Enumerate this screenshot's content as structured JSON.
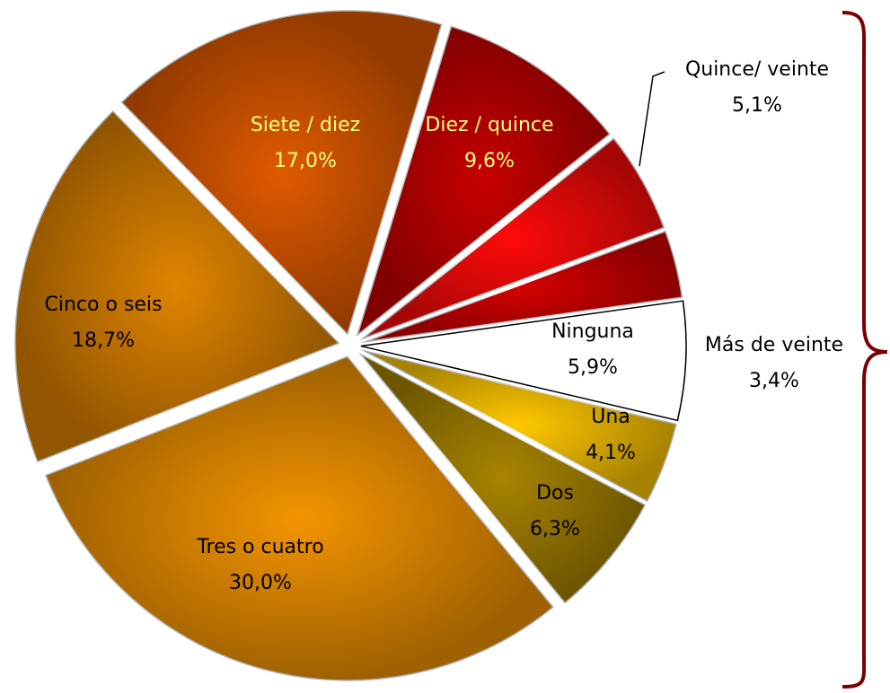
{
  "chart_data": {
    "type": "pie",
    "categories": [
      "Ninguna",
      "Una",
      "Dos",
      "Tres o cuatro",
      "Cinco o seis",
      "Siete / diez",
      "Diez / quince",
      "Quince/ veinte",
      "Más de veinte"
    ],
    "values": [
      5.9,
      4.1,
      6.3,
      30.0,
      18.7,
      17.0,
      9.6,
      5.1,
      3.4
    ],
    "value_labels": [
      "5,9%",
      "4,1%",
      "6,3%",
      "30,0%",
      "18,7%",
      "17,0%",
      "9,6%",
      "5,1%",
      "3,4%"
    ],
    "colors": [
      "#ffffff",
      "#ffc800",
      "#a88400",
      "#f39400",
      "#e08400",
      "#e05a00",
      "#c80000",
      "#ff0a0a",
      "#d40000"
    ],
    "label_colors": [
      "#000000",
      "#000000",
      "#000000",
      "#000000",
      "#000000",
      "#ffff80",
      "#ffff80",
      "#000000",
      "#000000"
    ]
  }
}
